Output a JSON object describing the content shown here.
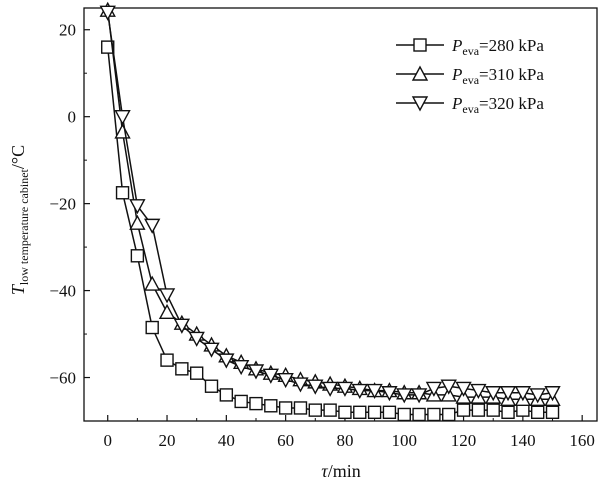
{
  "chart_data": {
    "type": "line",
    "xlabel": {
      "var": "τ",
      "unit": "/min"
    },
    "ylabel": {
      "var": "T",
      "sub": "low temperature cabinet",
      "unit": "/°C"
    },
    "xlim": [
      -8,
      165
    ],
    "ylim": [
      -70,
      25
    ],
    "xticks": [
      0,
      20,
      40,
      60,
      80,
      100,
      120,
      140,
      160
    ],
    "yticks": [
      20,
      0,
      -20,
      -40,
      -60
    ],
    "grid": false,
    "legend": "top-right",
    "series": [
      {
        "name": {
          "var": "P",
          "sub": "eva",
          "rest": "=280 kPa"
        },
        "marker": "square",
        "x": [
          0,
          5,
          10,
          15,
          20,
          25,
          30,
          35,
          40,
          45,
          50,
          55,
          60,
          65,
          70,
          75,
          80,
          85,
          90,
          95,
          100,
          105,
          110,
          115,
          120,
          125,
          130,
          135,
          140,
          145,
          150
        ],
        "y": [
          16,
          -17.5,
          -32,
          -48.5,
          -56,
          -58,
          -59,
          -62,
          -64,
          -65.5,
          -66,
          -66.5,
          -67,
          -67,
          -67.5,
          -67.5,
          -68,
          -68,
          -68,
          -68,
          -68.5,
          -68.5,
          -68.5,
          -68.5,
          -67.5,
          -67.5,
          -67.5,
          -68,
          -67.5,
          -68,
          -68
        ]
      },
      {
        "name": {
          "var": "P",
          "sub": "eva",
          "rest": "=310 kPa"
        },
        "marker": "triangle-up",
        "x": [
          0,
          5,
          10,
          15,
          20,
          25,
          30,
          35,
          40,
          45,
          50,
          55,
          60,
          65,
          70,
          75,
          80,
          85,
          90,
          95,
          100,
          105,
          110,
          115,
          120,
          125,
          130,
          135,
          140,
          145,
          150
        ],
        "y": [
          24.5,
          -3.5,
          -24.5,
          -38.5,
          -45,
          -47.5,
          -50,
          -52.5,
          -55,
          -56.5,
          -58,
          -59,
          -59.5,
          -60.5,
          -61,
          -61.5,
          -62,
          -62.5,
          -63,
          -63,
          -63.5,
          -63.5,
          -64,
          -64,
          -64.5,
          -64.5,
          -64.5,
          -65,
          -65,
          -65,
          -65
        ]
      },
      {
        "name": {
          "var": "P",
          "sub": "eva",
          "rest": "=320 kPa"
        },
        "marker": "triangle-down",
        "x": [
          0,
          5,
          10,
          15,
          20,
          25,
          30,
          35,
          40,
          45,
          50,
          55,
          60,
          65,
          70,
          75,
          80,
          85,
          90,
          95,
          100,
          105,
          110,
          115,
          120,
          125,
          130,
          135,
          140,
          145,
          150
        ],
        "y": [
          24,
          0,
          -20.5,
          -25,
          -41,
          -48,
          -51,
          -53.5,
          -56,
          -57.5,
          -58.5,
          -59.5,
          -60.5,
          -61.5,
          -62,
          -62.5,
          -62.5,
          -63,
          -63,
          -63.5,
          -64,
          -64,
          -62.5,
          -62,
          -62.5,
          -63,
          -63.5,
          -63.5,
          -63.5,
          -64,
          -63.5
        ]
      }
    ]
  }
}
